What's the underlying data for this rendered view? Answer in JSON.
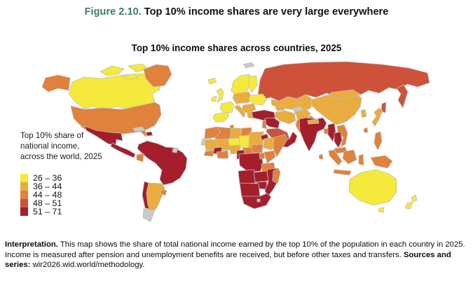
{
  "header": {
    "figure_label": "Figure 2.10.",
    "figure_title": " Top 10% income shares are very large everywhere",
    "label_color": "#3d7b69"
  },
  "map": {
    "title": "Top 10% income shares across countries, 2025",
    "legend": {
      "title_lines": [
        "Top 10% share of",
        "national income,",
        "across the world, 2025"
      ],
      "bins": [
        {
          "label": "26 – 36",
          "color": "#f5e93c"
        },
        {
          "label": "36 – 44",
          "color": "#eaac3e"
        },
        {
          "label": "44 – 48",
          "color": "#e0813c"
        },
        {
          "label": "48 – 51",
          "color": "#ce523a"
        },
        {
          "label": "51 – 71",
          "color": "#a41e2c"
        }
      ],
      "no_data_color": "#c9c9c9",
      "border_color": "#bfbfbf"
    }
  },
  "footer": {
    "interpretation_label": "Interpretation.",
    "interpretation_text": " This map shows the share of total national income earned by the top 10% of the population in each country in 2025. Income is measured after pension and unemployment benefits are received, but before other taxes and transfers. ",
    "sources_label": "Sources and series:",
    "sources_text": " wir2026.wid.world/methodology."
  },
  "chart_data": {
    "type": "heatmap",
    "subtype": "choropleth-world-map",
    "title": "Top 10% income shares across countries, 2025",
    "unit": "top 10% share of national income (%)",
    "value_range": [
      26,
      71
    ],
    "bins": [
      "26 – 36",
      "36 – 44",
      "44 – 48",
      "48 – 51",
      "51 – 71"
    ],
    "bin_colors": [
      "#f5e93c",
      "#eaac3e",
      "#e0813c",
      "#ce523a",
      "#a41e2c"
    ],
    "no_data_bin": 0,
    "regions": {
      "russia": 4,
      "kamchatka": 4,
      "sakhalin": 4,
      "kazakhstan-central-asia": 2,
      "turkmenistan": 0,
      "caucasus": 2,
      "china": 2,
      "mongolia": 2,
      "canada": 1,
      "arctic-islands-1": 1,
      "arctic-islands-2": 1,
      "arctic-islands-3": 1,
      "alaska": 3,
      "greenland": 3,
      "usa": 3,
      "mexico": 5,
      "central-america": 5,
      "cuba": 0,
      "hispaniola": 5,
      "trinidad": 1,
      "south-america-main": 5,
      "ecuador": 3,
      "french-guiana": 0,
      "chile": 5,
      "argentina": 2,
      "patagonia": 0,
      "uruguay": 3,
      "svalbard": 0,
      "scandinavia": 1,
      "finland": 1,
      "iceland": 1,
      "uk": 1,
      "ireland": 1,
      "denmark": 2,
      "germany-central-europe": 2,
      "ukraine-belarus": 1,
      "france": 1,
      "iberia": 1,
      "italy": 2,
      "romania-balkans": 2,
      "greece": 2,
      "turkey": 5,
      "syria-iraq": 5,
      "levant": 3,
      "iran": 2,
      "afghanistan": 2,
      "pakistan": 3,
      "saudi-arabia": 4,
      "yemen-oman": 5,
      "algeria": 3,
      "morocco": 3,
      "tunisia": 3,
      "libya": 2,
      "egypt": 3,
      "western-sahara": 0,
      "mauritania": 2,
      "mali": 2,
      "niger": 1,
      "chad": 1,
      "sudan": 2,
      "eritrea": 5,
      "ethiopia": 2,
      "somalia": 3,
      "senegal": 3,
      "guinea": 5,
      "west-africa-coast": 3,
      "nigeria": 2,
      "central-african-republic": 3,
      "south-sudan": 3,
      "cameroon-gabon": 5,
      "drc": 5,
      "uganda": 3,
      "kenya": 3,
      "tanzania": 3,
      "angola": 5,
      "zambia": 5,
      "zimbabwe": 5,
      "mozambique": 5,
      "namibia-botswana": 5,
      "south-africa": 5,
      "lesotho": 0,
      "madagascar": 3,
      "india": 5,
      "nepal": 2,
      "bangladesh": 3,
      "sri-lanka": 3,
      "south-korea": 2,
      "japan": 2,
      "taiwan": 3,
      "myanmar": 5,
      "thailand": 5,
      "laos-vietnam": 3,
      "malaysia": 3,
      "philippines": 3,
      "sumatra": 3,
      "borneo": 3,
      "sulawesi": 3,
      "java": 3,
      "new-guinea": 3,
      "australia": 1,
      "tasmania": 1,
      "new-zealand-north": 1,
      "new-zealand-south": 1
    }
  }
}
